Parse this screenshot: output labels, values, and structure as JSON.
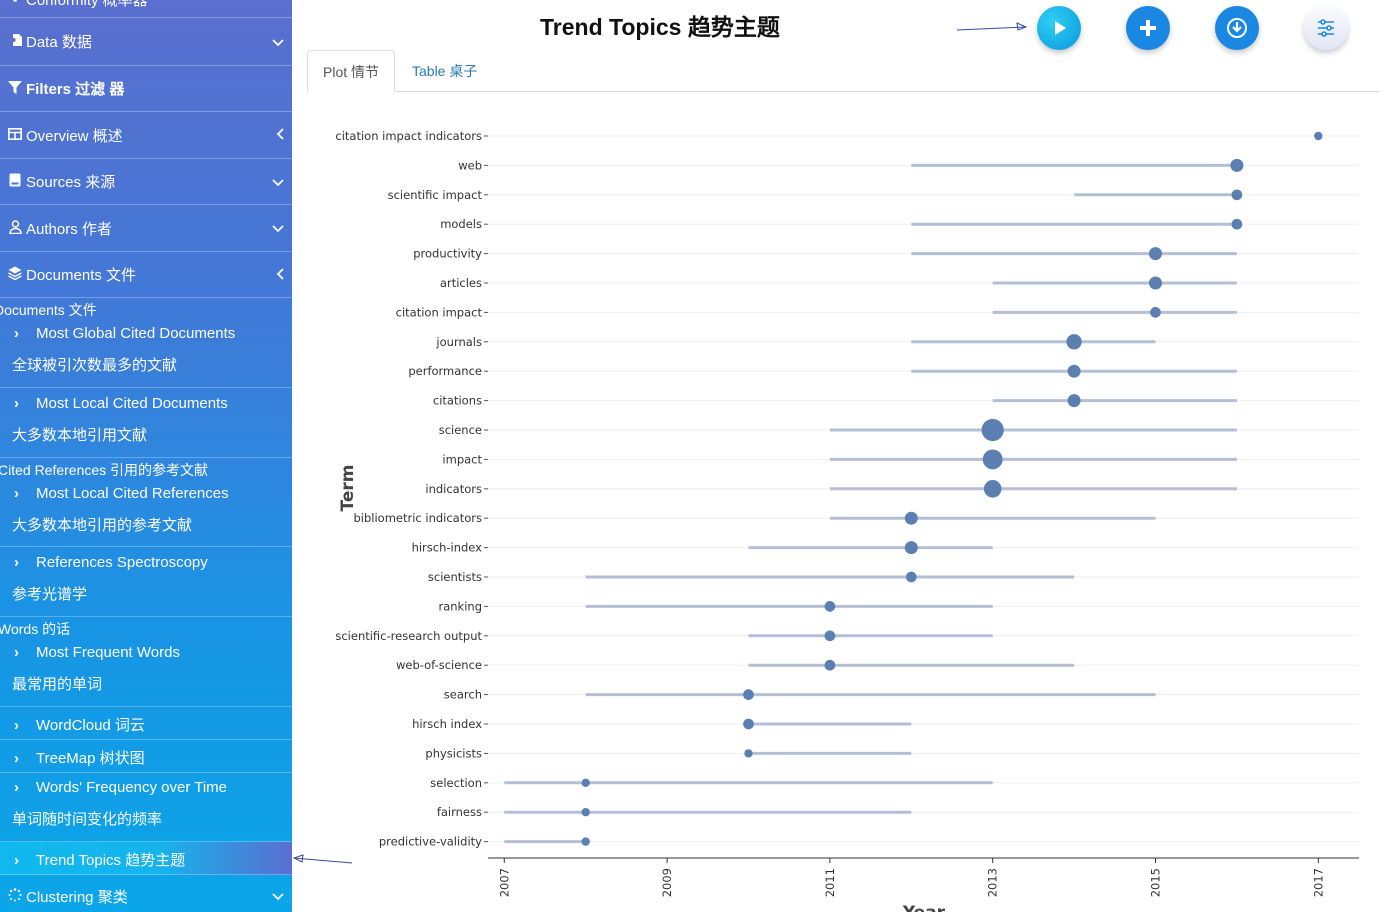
{
  "sidebar": {
    "top_partial_label": "Conformity 概率器",
    "items": {
      "data": {
        "label": "Data 数据",
        "icon": "file-import-icon",
        "arrow": "chevron-down-icon"
      },
      "filters": {
        "label": "Filters 过滤 器",
        "icon": "filter-icon"
      },
      "overview": {
        "label": "Overview 概述",
        "icon": "table-icon",
        "arrow": "chevron-left-icon"
      },
      "sources": {
        "label": "Sources 来源",
        "icon": "book-icon",
        "arrow": "chevron-down-icon"
      },
      "authors": {
        "label": "Authors 作者",
        "icon": "user-icon",
        "arrow": "chevron-down-icon"
      },
      "documents": {
        "label": "Documents 文件",
        "icon": "layers-icon",
        "arrow": "chevron-left-icon"
      },
      "clustering": {
        "label": "Clustering 聚类",
        "icon": "spinner-icon",
        "arrow": "chevron-down-icon"
      }
    },
    "sections": {
      "documents": "Documents  文件",
      "cited_references": "Cited References  引用的参考文献",
      "words": "Words  的话"
    },
    "subitems": {
      "most_global_cited_docs": {
        "en": "Most Global Cited Documents",
        "zh": "全球被引次数最多的文献"
      },
      "most_local_cited_docs": {
        "en": "Most Local Cited Documents",
        "zh": "大多数本地引用文献"
      },
      "most_local_cited_refs": {
        "en": "Most Local Cited References",
        "zh": "大多数本地引用的参考文献"
      },
      "references_spectroscopy": {
        "en": "References Spectroscopy",
        "zh": "参考光谱学"
      },
      "most_frequent_words": {
        "en": "Most Frequent Words",
        "zh": "最常用的单词"
      },
      "wordcloud": {
        "en": "WordCloud  词云"
      },
      "treemap": {
        "en": "TreeMap  树状图"
      },
      "words_frequency_over_time": {
        "en": "Words' Frequency over Time",
        "zh": "单词随时间变化的频率"
      },
      "trend_topics": {
        "en": "Trend Topics  趋势主题"
      }
    }
  },
  "header": {
    "title": "Trend Topics 趋势主题",
    "buttons": {
      "play": "play-icon",
      "add": "plus-icon",
      "download": "download-icon",
      "settings": "sliders-icon"
    }
  },
  "tabs": [
    {
      "label": "Plot 情节",
      "active": true
    },
    {
      "label": "Table 桌子",
      "active": false
    }
  ],
  "colors": {
    "sidebar_top": "#5a6fcf",
    "sidebar_bottom": "#0ba6e9",
    "primary_button": "#1a87e3",
    "point": "#5b7fb0",
    "range_line": "#b4bfd6",
    "tab_link": "#2a7ab8"
  },
  "chart_data": {
    "type": "scatter",
    "xlabel": "Year",
    "ylabel": "Term",
    "xlim": [
      2006.8,
      2017.5
    ],
    "x_ticks": [
      "2007",
      "2009",
      "2011",
      "2013",
      "2015",
      "2017"
    ],
    "grid": "horizontal",
    "series": [
      {
        "term": "citation impact indicators",
        "median_year": 2017,
        "start": 2017,
        "end": 2017,
        "size": 1
      },
      {
        "term": "web",
        "median_year": 2016,
        "start": 2012,
        "end": 2016,
        "size": 3
      },
      {
        "term": "scientific impact",
        "median_year": 2016,
        "start": 2014,
        "end": 2016,
        "size": 2
      },
      {
        "term": "models",
        "median_year": 2016,
        "start": 2012,
        "end": 2016,
        "size": 2
      },
      {
        "term": "productivity",
        "median_year": 2015,
        "start": 2012,
        "end": 2016,
        "size": 3
      },
      {
        "term": "articles",
        "median_year": 2015,
        "start": 2013,
        "end": 2016,
        "size": 3
      },
      {
        "term": "citation impact",
        "median_year": 2015,
        "start": 2013,
        "end": 2016,
        "size": 2
      },
      {
        "term": "journals",
        "median_year": 2014,
        "start": 2012,
        "end": 2015,
        "size": 4
      },
      {
        "term": "performance",
        "median_year": 2014,
        "start": 2012,
        "end": 2016,
        "size": 3
      },
      {
        "term": "citations",
        "median_year": 2014,
        "start": 2013,
        "end": 2016,
        "size": 3
      },
      {
        "term": "science",
        "median_year": 2013,
        "start": 2011,
        "end": 2016,
        "size": 7
      },
      {
        "term": "impact",
        "median_year": 2013,
        "start": 2011,
        "end": 2016,
        "size": 6
      },
      {
        "term": "indicators",
        "median_year": 2013,
        "start": 2011,
        "end": 2016,
        "size": 5
      },
      {
        "term": "bibliometric indicators",
        "median_year": 2012,
        "start": 2011,
        "end": 2015,
        "size": 3
      },
      {
        "term": "hirsch-index",
        "median_year": 2012,
        "start": 2010,
        "end": 2013,
        "size": 3
      },
      {
        "term": "scientists",
        "median_year": 2012,
        "start": 2008,
        "end": 2014,
        "size": 2
      },
      {
        "term": "ranking",
        "median_year": 2011,
        "start": 2008,
        "end": 2013,
        "size": 2
      },
      {
        "term": "scientific-research output",
        "median_year": 2011,
        "start": 2010,
        "end": 2013,
        "size": 2
      },
      {
        "term": "web-of-science",
        "median_year": 2011,
        "start": 2010,
        "end": 2014,
        "size": 2
      },
      {
        "term": "search",
        "median_year": 2010,
        "start": 2008,
        "end": 2015,
        "size": 2
      },
      {
        "term": "hirsch index",
        "median_year": 2010,
        "start": 2010,
        "end": 2012,
        "size": 2
      },
      {
        "term": "physicists",
        "median_year": 2010,
        "start": 2010,
        "end": 2012,
        "size": 1
      },
      {
        "term": "selection",
        "median_year": 2008,
        "start": 2007,
        "end": 2013,
        "size": 1
      },
      {
        "term": "fairness",
        "median_year": 2008,
        "start": 2007,
        "end": 2012,
        "size": 1
      },
      {
        "term": "predictive-validity",
        "median_year": 2008,
        "start": 2007,
        "end": 2008,
        "size": 1
      }
    ]
  }
}
